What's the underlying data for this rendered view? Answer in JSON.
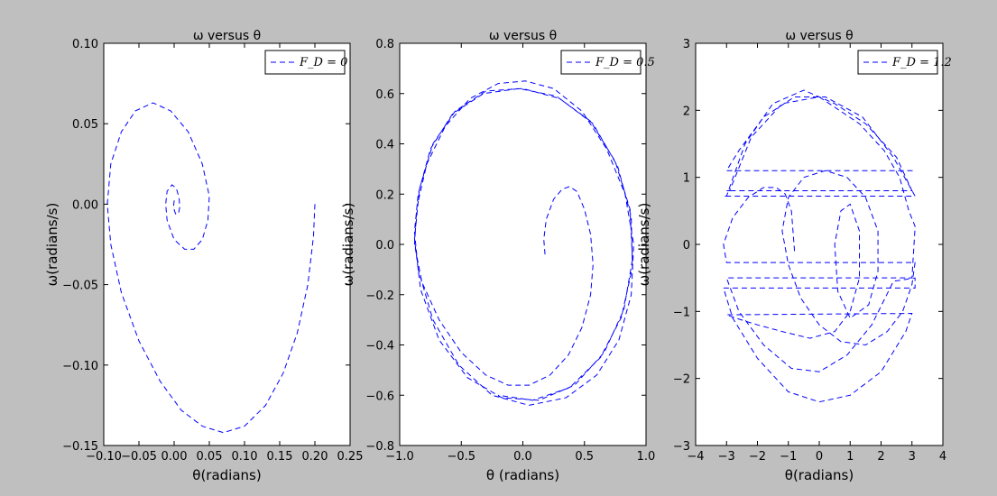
{
  "chart_data": [
    {
      "type": "line",
      "title": "ω versus θ",
      "x_label": "θ(radians)",
      "y_label": "ω(radians/s)",
      "legend": "upper right",
      "xlim": [
        -0.1,
        0.25
      ],
      "ylim": [
        -0.15,
        0.1
      ],
      "xticks": [
        {
          "value": -0.1,
          "label": "−0.10"
        },
        {
          "value": -0.05,
          "label": "−0.05"
        },
        {
          "value": 0,
          "label": "0.00"
        },
        0.05,
        {
          "value": 0.1,
          "label": "0.10"
        },
        0.15,
        {
          "value": 0.2,
          "label": "0.20"
        },
        0.25
      ],
      "yticks": [
        {
          "value": -0.15,
          "label": "−0.15"
        },
        {
          "value": -0.1,
          "label": "−0.10"
        },
        {
          "value": -0.05,
          "label": "−0.05"
        },
        {
          "value": 0,
          "label": "0.00"
        },
        0.05,
        {
          "value": 0.1,
          "label": "0.10"
        }
      ],
      "x": [
        0.2,
        0.198,
        0.19,
        0.175,
        0.155,
        0.13,
        0.1,
        0.07,
        0.04,
        0.01,
        -0.02,
        -0.05,
        -0.075,
        -0.09,
        -0.095,
        -0.09,
        -0.075,
        -0.055,
        -0.03,
        -0.005,
        0.02,
        0.04,
        0.05,
        0.048,
        0.04,
        0.028,
        0.015,
        0.0,
        -0.01,
        -0.012,
        -0.01,
        -0.003,
        0.003,
        0.007,
        0.008,
        0.006,
        0.002,
        -0.001,
        0.0,
        0.002
      ],
      "series": [
        {
          "name": "F_D = 0",
          "color": "#0000ff",
          "values": [
            0.0,
            -0.02,
            -0.05,
            -0.08,
            -0.105,
            -0.125,
            -0.138,
            -0.142,
            -0.138,
            -0.128,
            -0.11,
            -0.085,
            -0.055,
            -0.025,
            0.0,
            0.025,
            0.045,
            0.058,
            0.063,
            0.058,
            0.045,
            0.025,
            0.005,
            -0.01,
            -0.022,
            -0.028,
            -0.028,
            -0.022,
            -0.01,
            0.0,
            0.008,
            0.012,
            0.01,
            0.004,
            -0.002,
            -0.006,
            -0.006,
            -0.002,
            0.002,
            0.002
          ]
        }
      ]
    },
    {
      "type": "line",
      "title": "ω versus θ",
      "x_label": "θ (radians)",
      "y_label": "ω(radians/s)",
      "legend": "upper right",
      "xlim": [
        -1,
        1
      ],
      "ylim": [
        -0.8,
        0.8
      ],
      "xticks": [
        {
          "value": -1,
          "label": "−1.0"
        },
        {
          "value": -0.5,
          "label": "−0.5"
        },
        {
          "value": 0,
          "label": "0.0"
        },
        0.5,
        {
          "value": 1,
          "label": "1.0"
        }
      ],
      "yticks": [
        {
          "value": -0.8,
          "label": "−0.8"
        },
        {
          "value": -0.6,
          "label": "−0.6"
        },
        {
          "value": -0.4,
          "label": "−0.4"
        },
        {
          "value": -0.2,
          "label": "−0.2"
        },
        {
          "value": 0,
          "label": "0.0"
        },
        0.2,
        0.4,
        0.6,
        0.8
      ],
      "x": [
        0.18,
        0.17,
        0.19,
        0.25,
        0.32,
        0.38,
        0.44,
        0.5,
        0.55,
        0.57,
        0.55,
        0.48,
        0.37,
        0.22,
        0.05,
        -0.12,
        -0.3,
        -0.5,
        -0.68,
        -0.82,
        -0.88,
        -0.86,
        -0.78,
        -0.63,
        -0.43,
        -0.2,
        0.02,
        0.25,
        0.48,
        0.68,
        0.83,
        0.9,
        0.88,
        0.78,
        0.6,
        0.35,
        0.05,
        -0.25,
        -0.52,
        -0.73,
        -0.85,
        -0.88,
        -0.85,
        -0.75,
        -0.57,
        -0.32,
        -0.03,
        0.27,
        0.55,
        0.75,
        0.87,
        0.89,
        0.82,
        0.66,
        0.42,
        0.13,
        -0.17,
        -0.45,
        -0.68,
        -0.83,
        -0.88,
        -0.84,
        -0.73,
        -0.55,
        -0.3,
        0.0,
        0.3,
        0.57,
        0.77,
        0.88,
        0.89,
        0.8,
        0.63,
        0.38,
        0.08,
        -0.2
      ],
      "series": [
        {
          "name": "F_D = 0.5",
          "color": "#0000ff",
          "values": [
            -0.04,
            0.02,
            0.1,
            0.18,
            0.22,
            0.23,
            0.21,
            0.14,
            0.04,
            -0.08,
            -0.2,
            -0.33,
            -0.44,
            -0.52,
            -0.56,
            -0.56,
            -0.52,
            -0.43,
            -0.3,
            -0.15,
            0.0,
            0.15,
            0.32,
            0.47,
            0.58,
            0.64,
            0.65,
            0.62,
            0.53,
            0.38,
            0.2,
            0.0,
            -0.2,
            -0.38,
            -0.52,
            -0.61,
            -0.64,
            -0.6,
            -0.48,
            -0.3,
            -0.1,
            0.05,
            0.2,
            0.38,
            0.52,
            0.6,
            0.62,
            0.59,
            0.49,
            0.33,
            0.14,
            -0.06,
            -0.26,
            -0.43,
            -0.56,
            -0.62,
            -0.61,
            -0.53,
            -0.38,
            -0.18,
            0.02,
            0.22,
            0.4,
            0.53,
            0.61,
            0.62,
            0.58,
            0.48,
            0.31,
            0.11,
            -0.09,
            -0.29,
            -0.45,
            -0.57,
            -0.62,
            -0.6
          ]
        }
      ]
    },
    {
      "type": "line",
      "title": "ω versus θ",
      "x_label": "θ(radians)",
      "y_label": "ω(radians/s)",
      "legend": "upper right",
      "xlim": [
        -4,
        4
      ],
      "ylim": [
        -3,
        3
      ],
      "xticks": [
        {
          "value": -4,
          "label": "−4"
        },
        {
          "value": -3,
          "label": "−3"
        },
        {
          "value": -2,
          "label": "−2"
        },
        {
          "value": -1,
          "label": "−1"
        },
        0,
        1,
        2,
        3,
        4
      ],
      "yticks": [
        {
          "value": -3,
          "label": "−3"
        },
        {
          "value": -2,
          "label": "−2"
        },
        {
          "value": -1,
          "label": "−1"
        },
        0,
        1,
        2,
        3
      ],
      "x": [
        -0.8,
        -0.85,
        -0.9,
        -1.1,
        -1.4,
        -1.8,
        -2.3,
        -2.8,
        -3.1,
        -3.0,
        3.1,
        3.0,
        2.7,
        2.2,
        1.5,
        0.7,
        0.0,
        -0.6,
        -1.0,
        -1.2,
        -1.0,
        -0.5,
        0.2,
        0.9,
        1.5,
        1.9,
        1.9,
        1.6,
        1.0,
        0.6,
        0.5,
        0.7,
        1.0,
        1.3,
        1.3,
        1.0,
        0.5,
        -0.3,
        -1.2,
        -2.0,
        -2.7,
        -3.0,
        3.0,
        2.8,
        2.0,
        1.0,
        0.0,
        -1.0,
        -2.0,
        -2.8,
        -3.1,
        3.1,
        3.1,
        2.4,
        1.7,
        0.9,
        0.0,
        -0.9,
        -1.8,
        -2.6,
        -3.0,
        3.0,
        3.1,
        3.1,
        2.9,
        2.6,
        2.1,
        1.3,
        0.0,
        -1.2,
        -2.2,
        -2.9,
        -3.0,
        3.0,
        2.5,
        1.5,
        0.5,
        -0.5,
        -1.5,
        -2.4,
        -3.0,
        -3.1,
        3.1,
        2.4,
        1.4,
        0.2,
        -0.8,
        -1.8,
        -2.6,
        -3.0,
        3.1
      ],
      "series": [
        {
          "name": "F_D = 1.2",
          "color": "#0000ff",
          "values": [
            -0.1,
            0.2,
            0.5,
            0.75,
            0.85,
            0.85,
            0.7,
            0.4,
            0.0,
            -0.27,
            -0.27,
            -0.6,
            -1.0,
            -1.3,
            -1.5,
            -1.45,
            -1.2,
            -0.8,
            -0.3,
            0.2,
            0.7,
            1.0,
            1.1,
            1.0,
            0.7,
            0.2,
            -0.4,
            -0.9,
            -1.1,
            -0.7,
            0.0,
            0.5,
            0.6,
            0.2,
            -0.5,
            -1.0,
            -1.3,
            -1.4,
            -1.3,
            -1.2,
            -1.1,
            -1.05,
            -1.03,
            -1.3,
            -1.9,
            -2.25,
            -2.35,
            -2.2,
            -1.7,
            -1.1,
            -0.65,
            -0.65,
            -0.5,
            -0.55,
            -1.2,
            -1.65,
            -1.9,
            -1.85,
            -1.5,
            -1.0,
            -0.5,
            -0.5,
            0.25,
            0.27,
            0.5,
            1.0,
            1.4,
            1.8,
            2.2,
            2.1,
            1.6,
            0.8,
            0.8,
            0.8,
            1.3,
            1.8,
            2.1,
            2.3,
            2.1,
            1.5,
            0.72,
            0.72,
            0.72,
            1.3,
            1.9,
            2.2,
            2.2,
            1.9,
            1.4,
            1.1,
            1.1
          ]
        }
      ]
    }
  ]
}
